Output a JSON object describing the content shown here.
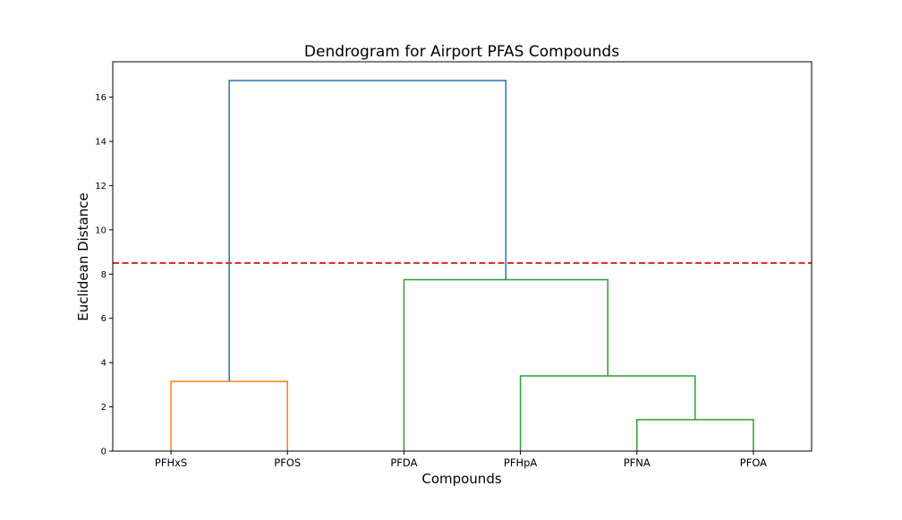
{
  "chart_data": {
    "type": "dendrogram",
    "title": "Dendrogram for Airport PFAS Compounds",
    "xlabel": "Compounds",
    "ylabel": "Euclidean Distance",
    "ylim": [
      0,
      17.6
    ],
    "yticks": [
      0,
      2,
      4,
      6,
      8,
      10,
      12,
      14,
      16
    ],
    "leaves": [
      "PFHxS",
      "PFOS",
      "PFDA",
      "PFHpA",
      "PFNA",
      "PFOA"
    ],
    "threshold": {
      "value": 8.5,
      "color": "#d62728",
      "style": "dashed"
    },
    "links": [
      {
        "left": [
          0,
          0
        ],
        "right": [
          1,
          0
        ],
        "height": 3.15,
        "color": "#ff7f0e"
      },
      {
        "left": [
          4,
          0
        ],
        "right": [
          5,
          0
        ],
        "height": 1.42,
        "color": "#2ca02c"
      },
      {
        "left": [
          3,
          0
        ],
        "right": [
          4.5,
          1.42
        ],
        "height": 3.4,
        "color": "#2ca02c"
      },
      {
        "left": [
          2,
          0
        ],
        "right": [
          3.75,
          3.4
        ],
        "height": 7.75,
        "color": "#2ca02c"
      },
      {
        "left": [
          0.5,
          3.15
        ],
        "right": [
          2.875,
          7.75
        ],
        "height": 16.75,
        "color": "#1f77b4"
      }
    ],
    "grid": false,
    "legend": "none"
  }
}
